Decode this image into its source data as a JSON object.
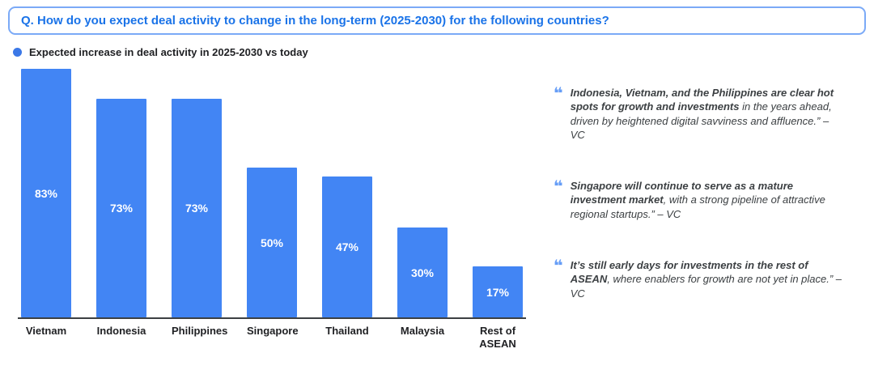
{
  "header": {
    "question": "Q. How do you expect deal activity to change in the long-term (2025-2030) for the following countries?"
  },
  "legend": {
    "label": "Expected increase in deal activity in 2025-2030 vs today"
  },
  "chart_data": {
    "type": "bar",
    "title": "Expected increase in deal activity in 2025-2030 vs today",
    "categories": [
      "Vietnam",
      "Indonesia",
      "Philippines",
      "Singapore",
      "Thailand",
      "Malaysia",
      "Rest of\nASEAN"
    ],
    "values": [
      83,
      73,
      73,
      50,
      47,
      30,
      17
    ],
    "value_labels": [
      "83%",
      "73%",
      "73%",
      "50%",
      "47%",
      "30%",
      "17%"
    ],
    "xlabel": "",
    "ylabel": "",
    "ylim": [
      0,
      85
    ],
    "grid": false,
    "legend_position": "top-left",
    "value_label_position": "inside",
    "bar_color": "#4285f4"
  },
  "quotes": [
    {
      "bold": "Indonesia, Vietnam, and the Philippines are clear hot spots for growth and investments",
      "rest": " in the years ahead, driven by heightened digital savviness and affluence.” – VC"
    },
    {
      "bold": "Singapore will continue to serve as a mature investment market",
      "rest": ", with a strong pipeline of attractive regional startups.” – VC"
    },
    {
      "bold": "It’s still early days for investments in the rest of ASEAN",
      "rest": ", where enablers for growth are not yet in place.” – VC"
    }
  ],
  "icons": {
    "quote_icon_glyph": "❝",
    "legend_dot": "filled-circle"
  },
  "colors": {
    "accent_blue": "#1a73e8",
    "bar_blue": "#4285f4",
    "legend_dot_blue": "#3b78e7",
    "quote_icon_blue": "#669df6",
    "question_border": "#7baaf7",
    "text_dark": "#202124"
  }
}
